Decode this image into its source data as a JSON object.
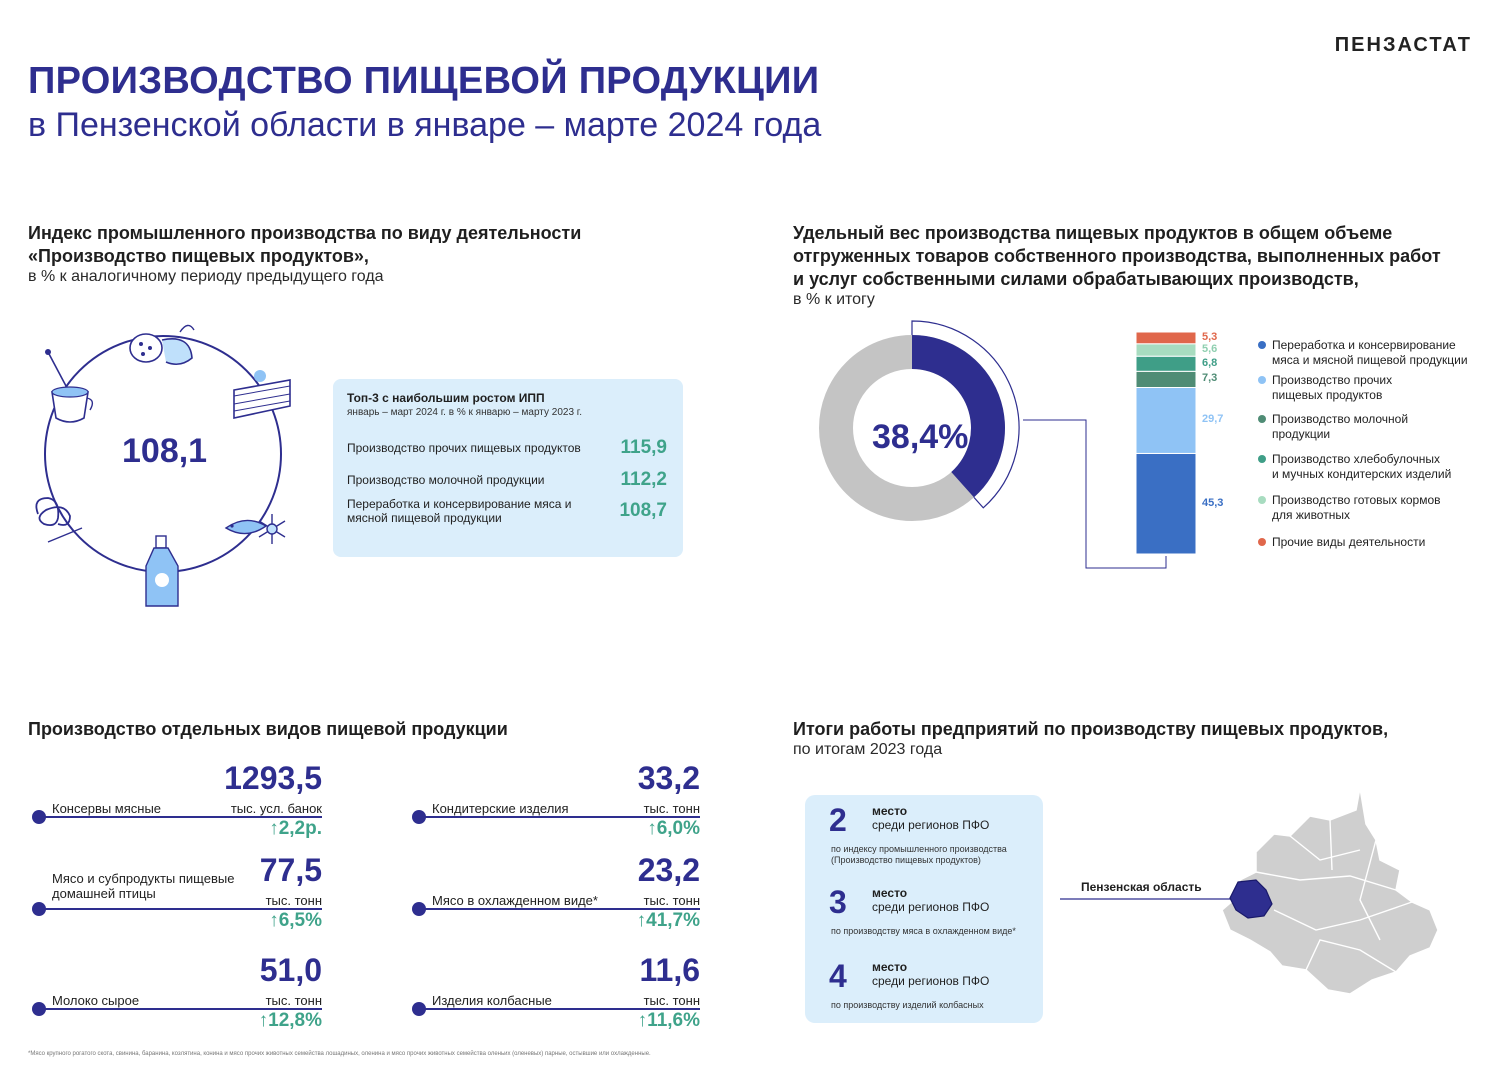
{
  "brand": "ПЕНЗАСТАТ",
  "title_line1": "ПРОИЗВОДСТВО ПИЩЕВОЙ ПРОДУКЦИИ",
  "title_line2": "в Пензенской области в январе – марте 2024 года",
  "index_section": {
    "title_line1": "Индекс промышленного производства по виду деятельности",
    "title_line2": "«Производство пищевых продуктов»,",
    "subtitle": "в % к аналогичному периоду предыдущего года",
    "value": "108,1",
    "icons": [
      "sausage-icon",
      "cake-icon",
      "coffee-cup-icon",
      "pretzel-icon",
      "fish-icon",
      "snowflake-icon",
      "milk-bottle-icon"
    ],
    "top3": {
      "title": "Топ-3 с наибольшим ростом ИПП",
      "subtitle": "январь – март 2024 г. в % к январю – марту 2023 г.",
      "rows": [
        {
          "label": "Производство прочих пищевых продуктов",
          "value": "115,9"
        },
        {
          "label": "Производство молочной продукции",
          "value": "112,2"
        },
        {
          "label": "Переработка и консервирование мяса и мясной пищевой продукции",
          "value": "108,7"
        }
      ]
    }
  },
  "share_section": {
    "title_line1": "Удельный вес производства пищевых продуктов в общем объеме",
    "title_line2": "отгруженных товаров собственного производства, выполненных работ",
    "title_line3": "и услуг собственными силами обрабатывающих производств,",
    "subtitle": "в % к итогу",
    "donut_label": "38,4%"
  },
  "chart_data": [
    {
      "type": "pie",
      "categories": [
        "Производство пищевых продуктов",
        "Прочие"
      ],
      "values": [
        38.4,
        61.6
      ],
      "colors": [
        "#2e2e8f",
        "#c4c4c4"
      ]
    },
    {
      "type": "bar",
      "stacked": true,
      "series": [
        {
          "name": "Переработка и консервирование мяса и мясной пищевой продукции",
          "value": 45.3,
          "label": "45,3",
          "color": "#3a6fc4"
        },
        {
          "name": "Производство прочих пищевых продуктов",
          "value": 29.7,
          "label": "29,7",
          "color": "#8fc3f5"
        },
        {
          "name": "Производство молочной продукции",
          "value": 7.3,
          "label": "7,3",
          "color": "#4f8c75"
        },
        {
          "name": "Производство хлебобулочных и мучных кондитерских изделий",
          "value": 6.8,
          "label": "6,8",
          "color": "#3f9e87"
        },
        {
          "name": "Производство готовых кормов для животных",
          "value": 5.6,
          "label": "5,6",
          "color": "#a8dcc0"
        },
        {
          "name": "Прочие виды деятельности",
          "value": 5.3,
          "label": "5,3",
          "color": "#e0674b"
        }
      ],
      "legend": [
        {
          "label_line1": "Переработка и консервирование",
          "label_line2": "мяса и мясной пищевой продукции",
          "color": "#3a6fc4"
        },
        {
          "label_line1": "Производство прочих",
          "label_line2": "пищевых продуктов",
          "color": "#8fc3f5"
        },
        {
          "label_line1": "Производство молочной",
          "label_line2": "продукции",
          "color": "#4f8c75"
        },
        {
          "label_line1": "Производство хлебобулочных",
          "label_line2": "и мучных кондитерских изделий",
          "color": "#3f9e87"
        },
        {
          "label_line1": "Производство готовых кормов",
          "label_line2": "для животных",
          "color": "#a8dcc0"
        },
        {
          "label_line1": "Прочие виды деятельности",
          "label_line2": "",
          "color": "#e0674b"
        }
      ],
      "legend_position": "right"
    }
  ],
  "products_section": {
    "title": "Производство отдельных видов пищевой продукции",
    "items": [
      {
        "name_line1": "Консервы мясные",
        "name_line2": "",
        "value": "1293,5",
        "unit": "тыс. усл. банок",
        "growth": "2,2р."
      },
      {
        "name_line1": "Мясо и субпродукты пищевые",
        "name_line2": "домашней птицы",
        "value": "77,5",
        "unit": "тыс. тонн",
        "growth": "6,5%"
      },
      {
        "name_line1": "Молоко сырое",
        "name_line2": "",
        "value": "51,0",
        "unit": "тыс. тонн",
        "growth": "12,8%"
      },
      {
        "name_line1": "Кондитерские изделия",
        "name_line2": "",
        "value": "33,2",
        "unit": "тыс. тонн",
        "growth": "6,0%"
      },
      {
        "name_line1": "Мясо в охлажденном виде*",
        "name_line2": "",
        "value": "23,2",
        "unit": "тыс. тонн",
        "growth": "41,7%"
      },
      {
        "name_line1": "Изделия колбасные",
        "name_line2": "",
        "value": "11,6",
        "unit": "тыс. тонн",
        "growth": "11,6%"
      }
    ],
    "growth_arrow": "↑"
  },
  "results_section": {
    "title": "Итоги работы предприятий по производству пищевых продуктов,",
    "subtitle": "по итогам 2023 года",
    "places": [
      {
        "number": "2",
        "place": "место",
        "region": "среди регионов ПФО",
        "note_line1": "по индексу промышленного производства",
        "note_line2": "(Производство пищевых продуктов)"
      },
      {
        "number": "3",
        "place": "место",
        "region": "среди регионов ПФО",
        "note_line1": "по производству мяса в охлажденном виде*",
        "note_line2": ""
      },
      {
        "number": "4",
        "place": "место",
        "region": "среди регионов ПФО",
        "note_line1": "по производству изделий колбасных",
        "note_line2": ""
      }
    ],
    "map_label": "Пензенская область"
  },
  "footnote": "*Мясо крупного рогатого скота, свинина, баранина, козлятина, конина и мясо прочих животных семейства лошадиных, оленина и мясо прочих животных семейства оленьих (оленевых) парные, остывшие или охлажденные."
}
